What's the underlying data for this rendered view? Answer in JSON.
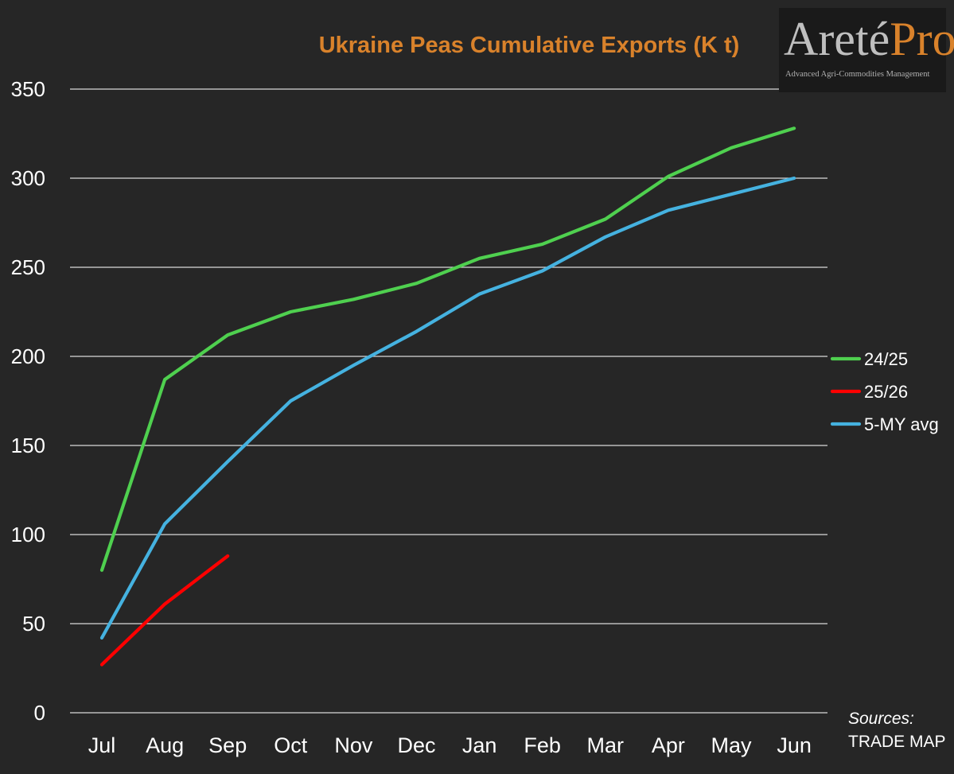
{
  "logo": {
    "part_a": "Areté",
    "part_b": "Pro",
    "tagline": "Advanced Agri-Commodities Management"
  },
  "sources": {
    "label": "Sources:",
    "value": "TRADE MAP"
  },
  "colors": {
    "background": "#262626",
    "title": "#d9822b",
    "axis_text": "#ffffff",
    "grid": "#d9d9d9"
  },
  "chart_data": {
    "type": "line",
    "title": "Ukraine Peas Cumulative Exports (K t)",
    "xlabel": "",
    "ylabel": "",
    "categories": [
      "Jul",
      "Aug",
      "Sep",
      "Oct",
      "Nov",
      "Dec",
      "Jan",
      "Feb",
      "Mar",
      "Apr",
      "May",
      "Jun"
    ],
    "ylim": [
      0,
      350
    ],
    "yticks": [
      0,
      50,
      100,
      150,
      200,
      250,
      300,
      350
    ],
    "grid": true,
    "legend_position": "right",
    "series": [
      {
        "name": "24/25",
        "color": "#4fd04f",
        "values": [
          80,
          187,
          212,
          225,
          232,
          241,
          255,
          263,
          277,
          301,
          317,
          328
        ]
      },
      {
        "name": "25/26",
        "color": "#ff0000",
        "values": [
          27,
          61,
          88,
          null,
          null,
          null,
          null,
          null,
          null,
          null,
          null,
          null
        ]
      },
      {
        "name": "5-MY avg",
        "color": "#45b2e0",
        "values": [
          42,
          106,
          141,
          175,
          195,
          214,
          235,
          248,
          267,
          282,
          291,
          300
        ]
      }
    ]
  }
}
